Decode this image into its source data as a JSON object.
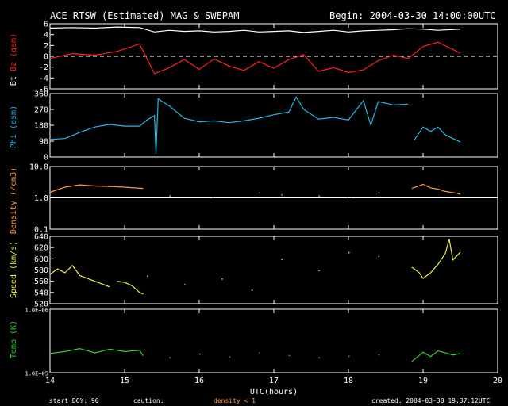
{
  "header": {
    "title": "ACE RTSW (Estimated) MAG & SWEPAM",
    "begin": "Begin: 2004-03-30 14:00:00UTC"
  },
  "footer": {
    "xlabel": "UTC(hours)",
    "start_doy": "start DOY:  90",
    "caution": "caution:",
    "density_note": "density < 1",
    "created": "created: 2004-03-30 19:37:12UTC"
  },
  "colors": {
    "background": "#000000",
    "axes": "#ffffff",
    "bt": "#ffffff",
    "bz": "#ff2020",
    "phi": "#22b8e8",
    "density": "#ff9a30",
    "speed": "#f0f040",
    "temp": "#30d030"
  },
  "chart_data": [
    {
      "type": "line",
      "panel": "mag",
      "ylabel_parts": [
        "Bt",
        "Bz",
        "(gsm)"
      ],
      "ylim": [
        -6,
        6
      ],
      "yticks": [
        "6",
        "4",
        "2",
        "0",
        "-2",
        "-4",
        "-6"
      ],
      "xlim": [
        14,
        20
      ],
      "series": [
        {
          "name": "Bt",
          "x": [
            14.0,
            14.3,
            14.6,
            14.9,
            15.2,
            15.4,
            15.6,
            15.8,
            16.0,
            16.2,
            16.4,
            16.6,
            16.8,
            17.0,
            17.2,
            17.4,
            17.6,
            17.8,
            18.0,
            18.2,
            18.4,
            18.6,
            18.8,
            19.0,
            19.2,
            19.5
          ],
          "y": [
            5.2,
            5.3,
            5.2,
            5.4,
            5.3,
            4.5,
            4.8,
            4.6,
            4.7,
            4.5,
            4.6,
            4.8,
            4.5,
            4.6,
            4.7,
            4.4,
            4.6,
            4.8,
            4.5,
            4.7,
            4.8,
            4.9,
            5.1,
            5.0,
            4.8,
            5.0
          ]
        },
        {
          "name": "Bz",
          "x": [
            14.0,
            14.3,
            14.6,
            14.9,
            15.2,
            15.4,
            15.6,
            15.8,
            16.0,
            16.2,
            16.4,
            16.6,
            16.8,
            17.0,
            17.2,
            17.4,
            17.6,
            17.8,
            18.0,
            18.2,
            18.4,
            18.6,
            18.8,
            19.0,
            19.2,
            19.5
          ],
          "y": [
            -0.4,
            0.5,
            0.2,
            0.9,
            2.3,
            -3.2,
            -2.1,
            -0.6,
            -2.4,
            -0.5,
            -1.8,
            -2.6,
            -1.0,
            -2.2,
            -0.6,
            0.3,
            -2.8,
            -2.1,
            -3.0,
            -2.5,
            -0.8,
            0.2,
            -0.4,
            1.8,
            2.6,
            0.6
          ]
        }
      ],
      "annotations": [
        "dashed zero line"
      ]
    },
    {
      "type": "line",
      "panel": "phi",
      "ylabel": "Phi (gsm)",
      "ylim": [
        0,
        360
      ],
      "yticks": [
        "360",
        "270",
        "180",
        "90",
        "0"
      ],
      "xlim": [
        14,
        20
      ],
      "series": [
        {
          "x": [
            14.0,
            14.2,
            14.4,
            14.6,
            14.8,
            15.0,
            15.2,
            15.3,
            15.4,
            15.42,
            15.45,
            15.6,
            15.8,
            16.0,
            16.2,
            16.4,
            16.6,
            16.8,
            17.0,
            17.2,
            17.3,
            17.4,
            17.6,
            17.8,
            18.0,
            18.2,
            18.3,
            18.4,
            18.6,
            18.8
          ],
          "y": [
            100,
            105,
            140,
            170,
            185,
            175,
            175,
            210,
            235,
            15,
            330,
            290,
            220,
            200,
            205,
            195,
            205,
            220,
            240,
            255,
            340,
            270,
            215,
            225,
            210,
            320,
            180,
            315,
            295,
            300
          ]
        },
        {
          "x": [
            18.88,
            19.0,
            19.1,
            19.2,
            19.3,
            19.4,
            19.5
          ],
          "y": [
            95,
            170,
            145,
            170,
            125,
            105,
            85
          ]
        }
      ]
    },
    {
      "type": "line",
      "panel": "density",
      "ylabel": "Density (/cm3)",
      "yscale": "log",
      "ylim": [
        0.1,
        10
      ],
      "yticks": [
        "10.0",
        "1.0",
        "0.1"
      ],
      "xlim": [
        14,
        20
      ],
      "series": [
        {
          "x": [
            14.0,
            14.2,
            14.4,
            14.6,
            14.8,
            15.0,
            15.25
          ],
          "y": [
            1.5,
            2.2,
            2.6,
            2.4,
            2.3,
            2.2,
            2.0
          ]
        },
        {
          "x": [
            18.85,
            19.0,
            19.1,
            19.2,
            19.3,
            19.45,
            19.5
          ],
          "y": [
            2.0,
            2.7,
            2.1,
            1.9,
            1.6,
            1.4,
            1.3
          ]
        }
      ],
      "sparse_points": {
        "x": [
          15.6,
          16.2,
          16.8,
          17.1,
          17.6,
          18.0,
          18.4
        ],
        "y": [
          1.2,
          1.1,
          1.5,
          1.3,
          1.2,
          1.1,
          1.5
        ]
      }
    },
    {
      "type": "line",
      "panel": "speed",
      "ylabel": "Speed (km/s)",
      "ylim": [
        520,
        640
      ],
      "yticks": [
        "640",
        "620",
        "600",
        "580",
        "560",
        "540",
        "520"
      ],
      "xlim": [
        14,
        20
      ],
      "series": [
        {
          "x": [
            14.0,
            14.1,
            14.2,
            14.3,
            14.4,
            14.5,
            14.6,
            14.7,
            14.8
          ],
          "y": [
            572,
            582,
            575,
            588,
            570,
            565,
            560,
            555,
            550
          ]
        },
        {
          "x": [
            14.9,
            15.0,
            15.1,
            15.2,
            15.25
          ],
          "y": [
            560,
            558,
            552,
            540,
            537
          ]
        },
        {
          "x": [
            18.85,
            18.95,
            19.0,
            19.1,
            19.2,
            19.3,
            19.35,
            19.4,
            19.5
          ],
          "y": [
            585,
            575,
            565,
            575,
            590,
            610,
            635,
            598,
            612
          ]
        }
      ],
      "sparse_points": {
        "x": [
          15.3,
          15.8,
          16.3,
          16.7,
          17.1,
          17.6,
          18.0,
          18.4
        ],
        "y": [
          570,
          555,
          565,
          545,
          600,
          580,
          612,
          605
        ]
      }
    },
    {
      "type": "line",
      "panel": "temp",
      "ylabel": "Temp (K)",
      "yscale": "log",
      "ylim": [
        100000,
        1000000
      ],
      "yticks": [
        "1.0E+06",
        "1.0E+05"
      ],
      "xlim": [
        14,
        20
      ],
      "series": [
        {
          "x": [
            14.0,
            14.2,
            14.4,
            14.6,
            14.8,
            15.0,
            15.2,
            15.25
          ],
          "y": [
            200000,
            215000,
            240000,
            205000,
            235000,
            215000,
            225000,
            185000
          ]
        },
        {
          "x": [
            18.85,
            19.0,
            19.1,
            19.2,
            19.3,
            19.4,
            19.5
          ],
          "y": [
            150000,
            210000,
            180000,
            220000,
            205000,
            190000,
            200000
          ]
        }
      ],
      "sparse_points": {
        "x": [
          15.6,
          16.0,
          16.4,
          16.8,
          17.2,
          17.6,
          18.0,
          18.4
        ],
        "y": [
          175000,
          200000,
          180000,
          210000,
          190000,
          175000,
          185000,
          195000
        ]
      }
    }
  ],
  "x_axis": {
    "ticks": [
      "14",
      "15",
      "16",
      "17",
      "18",
      "19",
      "20"
    ],
    "xlim": [
      14,
      20
    ]
  }
}
